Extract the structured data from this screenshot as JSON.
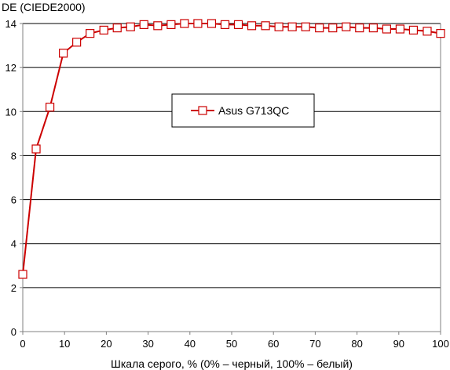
{
  "chart_data": {
    "type": "line",
    "ylabel": "DE (CIEDE2000)",
    "xlabel": "Шкала серого, % (0% – черный, 100% – белый)",
    "xlim": [
      0,
      100
    ],
    "ylim": [
      0,
      14
    ],
    "x_ticks": [
      0,
      10,
      20,
      30,
      40,
      50,
      60,
      70,
      80,
      90,
      100
    ],
    "y_ticks": [
      0,
      2,
      4,
      6,
      8,
      10,
      12,
      14
    ],
    "grid": "horizontal",
    "legend_position": "center",
    "colors": {
      "series": "#cc0000",
      "grid": "#000000",
      "axis": "#808080"
    },
    "series": [
      {
        "name": "Asus G713QC",
        "marker": "square",
        "x": [
          0,
          3.2,
          6.5,
          9.7,
          12.9,
          16.1,
          19.4,
          22.6,
          25.8,
          29.0,
          32.3,
          35.5,
          38.7,
          41.9,
          45.2,
          48.4,
          51.6,
          54.8,
          58.1,
          61.3,
          64.5,
          67.7,
          71.0,
          74.2,
          77.4,
          80.6,
          83.9,
          87.1,
          90.3,
          93.5,
          96.8,
          100
        ],
        "y": [
          2.6,
          8.3,
          10.2,
          12.65,
          13.15,
          13.55,
          13.7,
          13.8,
          13.85,
          13.95,
          13.9,
          13.95,
          14.0,
          14.0,
          14.0,
          13.95,
          13.95,
          13.9,
          13.9,
          13.85,
          13.85,
          13.85,
          13.8,
          13.8,
          13.85,
          13.8,
          13.8,
          13.75,
          13.75,
          13.7,
          13.65,
          13.55
        ]
      }
    ]
  }
}
